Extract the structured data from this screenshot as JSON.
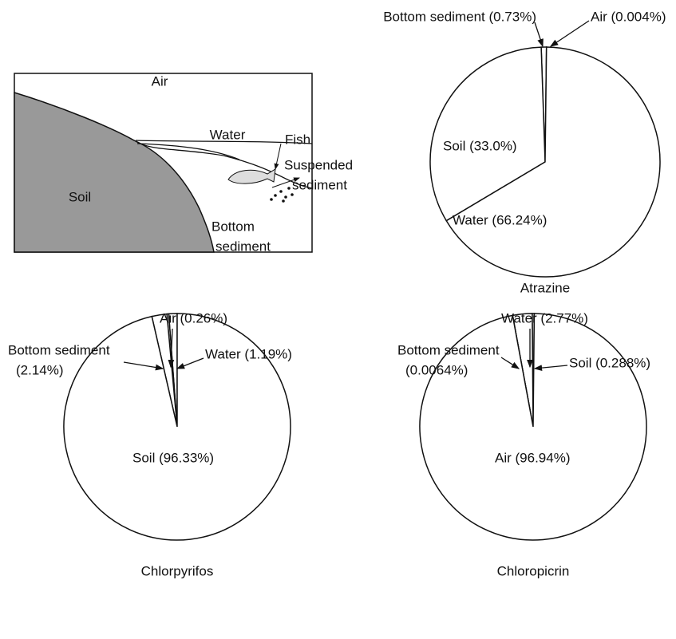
{
  "diagram": {
    "air": "Air",
    "soil": "Soil",
    "water": "Water",
    "fish": "Fish",
    "suspended_sediment": [
      "Suspended",
      "sediment"
    ],
    "bottom_sediment": [
      "Bottom",
      "sediment"
    ]
  },
  "chart_data": [
    {
      "type": "pie",
      "title": "Atrazine",
      "values": [
        0.004,
        0.73,
        33.0,
        66.24
      ],
      "value_labels": [
        "Air (0.004%)",
        "Bottom sediment (0.73%)",
        "Soil (33.0%)",
        "Water (66.24%)"
      ],
      "color": "#ffffff"
    },
    {
      "type": "pie",
      "title": "Chlorpyrifos",
      "values": [
        1.19,
        0.26,
        2.14,
        96.33
      ],
      "value_labels": [
        "Water (1.19%)",
        "Air (0.26%)",
        [
          "Bottom sediment",
          "(2.14%)"
        ],
        "Soil (96.33%)"
      ],
      "color": "#ffffff"
    },
    {
      "type": "pie",
      "title": "Chloropicrin",
      "values": [
        0.288,
        2.77,
        0.0064,
        96.94
      ],
      "value_labels": [
        "Soil (0.288%)",
        "Water (2.77%)",
        [
          "Bottom sediment",
          "(0.0064%)"
        ],
        "Air (96.94%)"
      ],
      "color": "#ffffff"
    }
  ]
}
